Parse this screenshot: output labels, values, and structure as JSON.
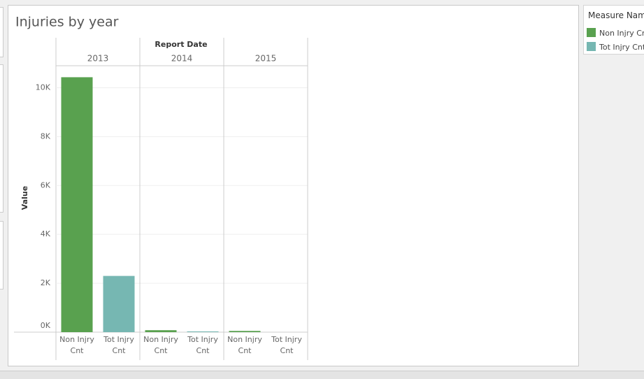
{
  "chart_data": {
    "type": "bar",
    "title": "Injuries by year",
    "column_header": "Report Date",
    "categories": [
      "2013",
      "2014",
      "2015"
    ],
    "series": [
      {
        "name": "Non Injry Cnt",
        "color": "#59a14f",
        "values": [
          10430,
          80,
          50
        ]
      },
      {
        "name": "Tot Injry Cnt",
        "color": "#76b7b2",
        "values": [
          2300,
          30,
          0
        ]
      }
    ],
    "y_label": "Value",
    "ylim": [
      0,
      10900
    ],
    "yticks": [
      {
        "value": 0,
        "label": "0K"
      },
      {
        "value": 2000,
        "label": "2K"
      },
      {
        "value": 4000,
        "label": "4K"
      },
      {
        "value": 6000,
        "label": "6K"
      },
      {
        "value": 8000,
        "label": "8K"
      },
      {
        "value": 10000,
        "label": "10K"
      }
    ],
    "grid": true,
    "legend_title": "Measure Names"
  }
}
